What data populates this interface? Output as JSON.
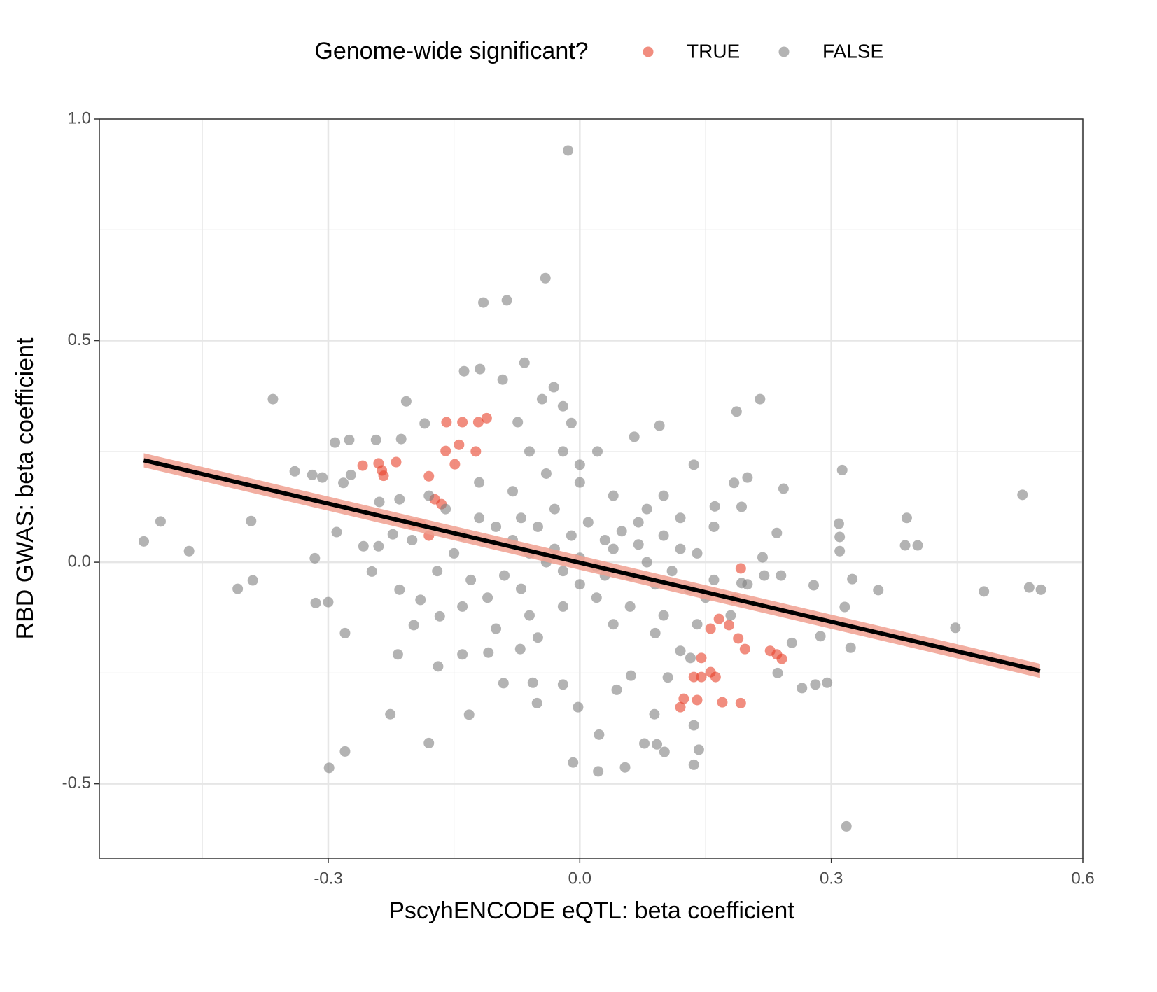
{
  "chart_data": {
    "type": "scatter",
    "legend_title": "Genome-wide significant?",
    "x_label": "PscyhENCODE eQTL: beta coefficient",
    "y_label": "RBD GWAS: beta coefficient",
    "xlim": [
      -0.573,
      0.6
    ],
    "ylim": [
      -0.668,
      1.0
    ],
    "xticks": [
      -0.3,
      {
        "value": 0,
        "label": "0.0"
      },
      0.3,
      0.6
    ],
    "yticks": [
      -0.5,
      {
        "value": 0,
        "label": "0.0"
      },
      0.5,
      {
        "value": 1,
        "label": "1.0"
      }
    ],
    "x_minor_grid": [
      -0.45,
      -0.15,
      0.15,
      0.45
    ],
    "y_minor_grid": [
      -0.25,
      0.25,
      0.75
    ],
    "grid": true,
    "legend_position": "top",
    "series": [
      {
        "name": "TRUE",
        "color": "#e8412a",
        "x": [
          -0.259,
          -0.236,
          -0.234,
          -0.219,
          -0.24,
          -0.18,
          -0.173,
          -0.165,
          -0.19,
          -0.18,
          -0.2,
          -0.159,
          -0.14,
          -0.111,
          -0.121,
          -0.144,
          -0.16,
          -0.124,
          -0.149,
          0.192,
          0.185,
          0.178,
          0.166,
          0.156,
          0.189,
          0.197,
          0.145,
          0.145,
          0.156,
          0.162,
          0.136,
          0.12,
          0.124,
          0.14,
          0.17,
          0.192,
          0.227,
          0.241,
          0.235
        ],
        "y": [
          0.218,
          0.207,
          0.195,
          0.226,
          0.223,
          0.194,
          0.142,
          0.131,
          0.087,
          0.06,
          0.087,
          0.316,
          0.316,
          0.325,
          0.316,
          0.265,
          0.251,
          0.25,
          0.221,
          -0.014,
          -0.082,
          -0.142,
          -0.128,
          -0.15,
          -0.172,
          -0.196,
          -0.216,
          -0.259,
          -0.248,
          -0.259,
          -0.259,
          -0.327,
          -0.308,
          -0.311,
          -0.316,
          -0.318,
          -0.2,
          -0.218,
          -0.208
        ]
      },
      {
        "name": "FALSE",
        "color": "#808080",
        "x": [
          -0.52,
          -0.5,
          -0.466,
          -0.408,
          -0.39,
          -0.392,
          -0.366,
          -0.34,
          -0.316,
          -0.315,
          -0.3,
          -0.299,
          -0.28,
          -0.28,
          -0.226,
          -0.18,
          -0.132,
          -0.014,
          -0.041,
          -0.115,
          -0.087,
          -0.066,
          0.187,
          0.215,
          0.313,
          0.528,
          0.39,
          0.388,
          0.403,
          0.356,
          0.448,
          0.482,
          0.536,
          0.55,
          0.318,
          0.325,
          0.309,
          0.31,
          0.31,
          0.316,
          0.323,
          0.295,
          0.281,
          0.235,
          0.243,
          0.184,
          0.136,
          0.142,
          0.101,
          0.077,
          0.092,
          0.054,
          0.022,
          -0.008,
          0.023,
          -0.002,
          -0.051,
          -0.091,
          -0.169,
          0.089,
          0.095,
          0.065,
          -0.138,
          -0.119,
          -0.092,
          -0.207,
          -0.185,
          -0.213,
          -0.292,
          -0.275,
          -0.243,
          -0.045,
          -0.031,
          -0.02,
          -0.01,
          -0.074,
          0.021,
          0.136,
          0.161,
          0.193,
          0.2,
          0.253,
          0.236,
          0.265,
          0.287,
          0.279,
          0.193,
          0.218,
          0.136,
          0.132,
          0.105,
          0.061,
          0.044,
          -0.02,
          -0.056,
          -0.071,
          -0.109,
          -0.14,
          -0.167,
          -0.198,
          -0.217,
          -0.19,
          -0.215,
          -0.248,
          -0.258,
          -0.24,
          -0.223,
          -0.239,
          -0.215,
          -0.282,
          -0.307,
          -0.319,
          -0.29,
          -0.273,
          -0.08,
          -0.06,
          -0.04,
          -0.02,
          0.0,
          0.02,
          0.04,
          0.06,
          0.08,
          -0.1,
          -0.12,
          -0.14,
          -0.09,
          -0.07,
          -0.05,
          -0.03,
          -0.01,
          0.01,
          0.03,
          0.05,
          0.07,
          0.09,
          0.11,
          0.13,
          0.15,
          0.12,
          0.1,
          -0.11,
          -0.13,
          -0.15,
          -0.16,
          -0.18,
          -0.12,
          -0.08,
          -0.04,
          0.0,
          0.04,
          0.08,
          0.02,
          -0.02,
          0.06,
          0.1,
          0.14,
          0.16,
          0.14,
          -0.06,
          -0.1,
          -0.14,
          0.0,
          -0.03,
          0.03,
          -0.07,
          0.07,
          0.12,
          0.16,
          -0.17,
          -0.2,
          -0.05,
          0.04,
          0.09,
          0.18,
          0.2,
          0.22,
          0.24,
          0.12,
          0.1,
          -0.02,
          -0.06,
          0.0
        ],
        "y": [
          0.047,
          0.092,
          0.025,
          -0.06,
          -0.041,
          0.093,
          0.368,
          0.205,
          0.009,
          -0.092,
          -0.09,
          -0.464,
          -0.427,
          -0.16,
          -0.343,
          -0.408,
          -0.344,
          0.929,
          0.641,
          0.586,
          0.591,
          0.45,
          0.34,
          0.368,
          0.208,
          0.152,
          0.1,
          0.038,
          0.038,
          -0.063,
          -0.148,
          -0.066,
          -0.057,
          -0.062,
          -0.596,
          -0.038,
          0.087,
          0.057,
          0.025,
          -0.101,
          -0.193,
          -0.272,
          -0.276,
          0.066,
          0.166,
          0.179,
          -0.457,
          -0.423,
          -0.428,
          -0.409,
          -0.411,
          -0.463,
          -0.472,
          -0.452,
          -0.389,
          -0.327,
          -0.318,
          -0.273,
          -0.235,
          -0.343,
          0.308,
          0.283,
          0.431,
          0.436,
          0.412,
          0.363,
          0.313,
          0.278,
          0.27,
          0.276,
          0.276,
          0.368,
          0.395,
          0.352,
          0.314,
          0.316,
          0.25,
          0.22,
          0.126,
          0.125,
          0.191,
          -0.182,
          -0.25,
          -0.284,
          -0.167,
          -0.052,
          -0.047,
          0.011,
          -0.368,
          -0.216,
          -0.26,
          -0.256,
          -0.288,
          -0.276,
          -0.272,
          -0.196,
          -0.204,
          -0.208,
          -0.122,
          -0.142,
          -0.208,
          -0.085,
          -0.062,
          -0.021,
          0.036,
          0.036,
          0.063,
          0.136,
          0.142,
          0.179,
          0.191,
          0.197,
          0.068,
          0.197,
          0.05,
          0.02,
          0.0,
          -0.02,
          0.01,
          -0.01,
          0.03,
          -0.03,
          0.0,
          0.08,
          0.1,
          0.06,
          -0.03,
          -0.06,
          0.08,
          0.12,
          0.06,
          0.09,
          0.05,
          0.07,
          0.04,
          -0.05,
          -0.02,
          -0.06,
          -0.08,
          0.03,
          0.06,
          -0.08,
          -0.04,
          0.02,
          0.12,
          0.15,
          0.18,
          0.16,
          0.2,
          0.18,
          0.15,
          0.12,
          -0.08,
          -0.1,
          -0.1,
          -0.12,
          -0.14,
          -0.04,
          0.02,
          -0.12,
          -0.15,
          -0.1,
          -0.05,
          0.03,
          -0.03,
          0.1,
          0.09,
          0.1,
          0.08,
          -0.02,
          0.05,
          -0.17,
          -0.14,
          -0.16,
          -0.12,
          -0.05,
          -0.03,
          -0.03,
          -0.2,
          0.15,
          0.25,
          0.25,
          0.22
        ]
      }
    ],
    "fit": {
      "color": "#000000",
      "band_color": "#f0a090",
      "x": [
        -0.52,
        0.549
      ],
      "y": [
        0.23,
        -0.245
      ],
      "lower": [
        0.214,
        -0.261
      ],
      "upper": [
        0.246,
        -0.229
      ]
    }
  }
}
